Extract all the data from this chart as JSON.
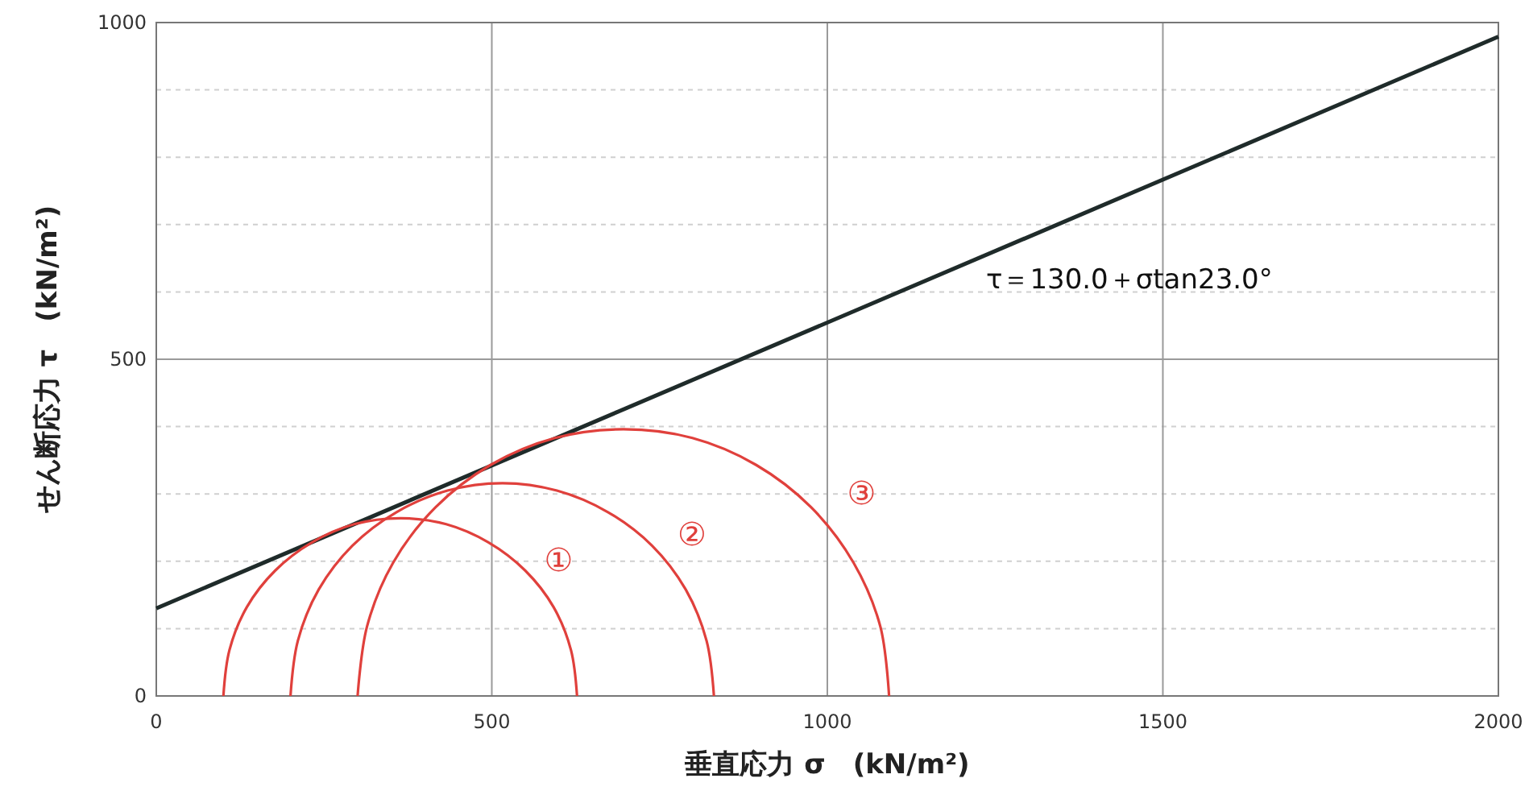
{
  "chart_data": {
    "type": "line",
    "xlabel": "垂直応力 σ　(kN/m²)",
    "ylabel": "せん断応力 τ　(kN/m²)",
    "xlim": [
      0,
      2000
    ],
    "xticks": [
      0,
      500,
      1000,
      1500,
      2000
    ],
    "ylim": [
      0,
      1000
    ],
    "yticks": [
      0,
      {
        "value": 100,
        "label": null
      },
      {
        "value": 200,
        "label": null
      },
      {
        "value": 300,
        "label": null
      },
      {
        "value": 400,
        "label": null
      },
      500,
      {
        "value": 600,
        "label": null
      },
      {
        "value": 700,
        "label": null
      },
      {
        "value": 800,
        "label": null
      },
      {
        "value": 900,
        "label": null
      },
      1000
    ],
    "grid": true,
    "marker": "none",
    "line_style": "solid",
    "series": [
      {
        "name": "τ＝130.0＋σtan23.0°",
        "color": "#1f2b2a",
        "x": [
          0,
          2000
        ],
        "values": [
          130,
          979
        ]
      },
      {
        "name": "①",
        "color": "#e0403c",
        "x": [
          100,
          109,
          135,
          177,
          232,
          295,
          364,
          432,
          495,
          550,
          592,
          618,
          627
        ],
        "values": [
          0,
          68,
          132,
          186,
          228,
          255,
          264,
          255,
          228,
          186,
          132,
          68,
          0
        ]
      },
      {
        "name": "②",
        "color": "#e0403c",
        "x": [
          200,
          211,
          242,
          292,
          358,
          434,
          516,
          597,
          673,
          739,
          789,
          820,
          831
        ],
        "values": [
          0,
          82,
          158,
          223,
          273,
          305,
          316,
          305,
          273,
          223,
          158,
          82,
          0
        ]
      },
      {
        "name": "③",
        "color": "#e0403c",
        "x": [
          300,
          314,
          353,
          416,
          498,
          594,
          696,
          799,
          894,
          976,
          1039,
          1079,
          1092
        ],
        "values": [
          0,
          103,
          198,
          280,
          343,
          383,
          396,
          383,
          343,
          280,
          198,
          103,
          0
        ]
      }
    ]
  }
}
